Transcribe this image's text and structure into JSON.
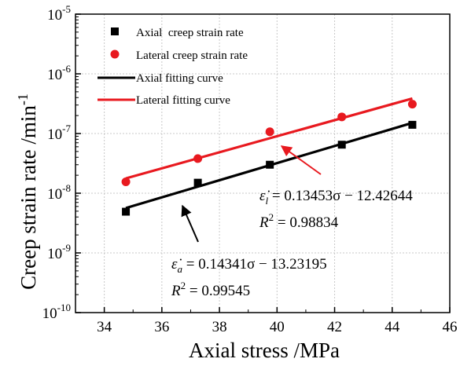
{
  "chart_data": {
    "type": "scatter",
    "xlabel": "Axial stress /MPa",
    "ylabel": "Creep strain rate /min",
    "ylabel_sup": "-1",
    "xlim": [
      33,
      46
    ],
    "ylim_log10": [
      -10,
      -5
    ],
    "y_scale": "log",
    "grid": true,
    "legend_position": "top-left",
    "x_ticks": [
      "34",
      "36",
      "38",
      "40",
      "42",
      "44",
      "46"
    ],
    "y_ticks": [
      {
        "base": "10",
        "exp": "-10"
      },
      {
        "base": "10",
        "exp": "-9"
      },
      {
        "base": "10",
        "exp": "-8"
      },
      {
        "base": "10",
        "exp": "-7"
      },
      {
        "base": "10",
        "exp": "-6"
      },
      {
        "base": "10",
        "exp": "-5"
      }
    ],
    "series": [
      {
        "name": "Axial  creep strain rate",
        "marker": "square",
        "color": "#000000",
        "x": [
          34.75,
          37.25,
          39.75,
          42.25,
          44.7
        ],
        "y": [
          4.9e-09,
          1.5e-08,
          3e-08,
          6.5e-08,
          1.4e-07
        ]
      },
      {
        "name": "Lateral creep strain rate",
        "marker": "circle",
        "color": "#e8191f",
        "x": [
          34.75,
          37.25,
          39.75,
          42.25,
          44.7
        ],
        "y": [
          1.55e-08,
          3.8e-08,
          1.07e-07,
          1.9e-07,
          3.1e-07
        ]
      }
    ],
    "fits": [
      {
        "name": "Axial fitting curve",
        "color": "#000000",
        "slope": 0.14341,
        "intercept": -13.23195,
        "x_range": [
          34.75,
          44.7
        ]
      },
      {
        "name": "Lateral fitting curve",
        "color": "#e8191f",
        "slope": 0.13453,
        "intercept": -12.42644,
        "x_range": [
          34.75,
          44.7
        ]
      }
    ],
    "annotations": {
      "lateral": {
        "eq_left": "ε̇",
        "eq_sub": "l",
        "eq_right": " = 0.13453σ − 12.42644",
        "r2_left": "R",
        "r2_sup": "2",
        "r2_right": " = 0.98834",
        "color": "#e8191f"
      },
      "axial": {
        "eq_left": "ε̇",
        "eq_sub": "a",
        "eq_right": " = 0.14341σ − 13.23195",
        "r2_left": "R",
        "r2_sup": "2",
        "r2_right": " = 0.99545",
        "color": "#000000"
      }
    }
  }
}
